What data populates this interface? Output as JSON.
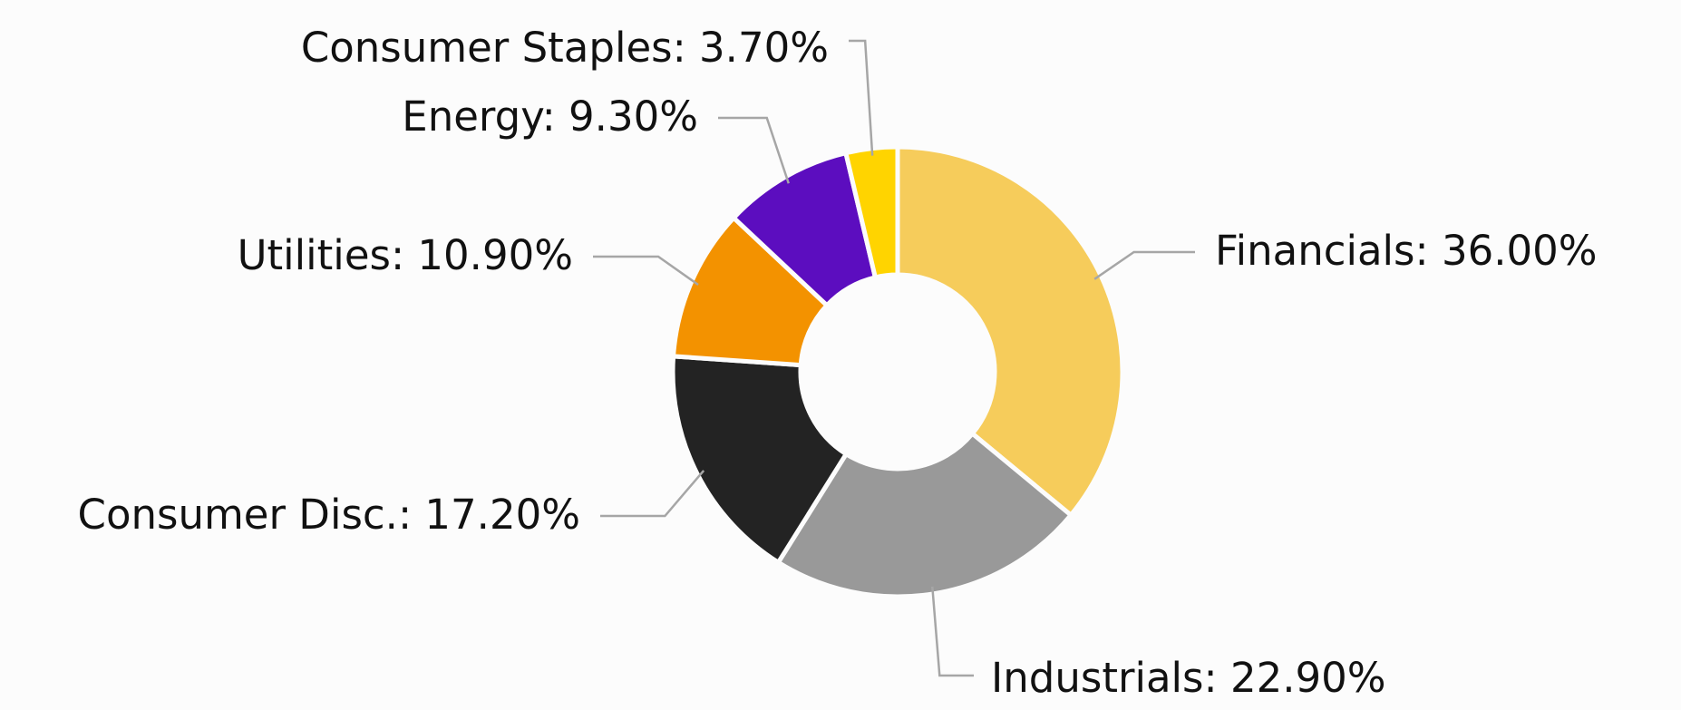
{
  "chart_data": {
    "type": "pie",
    "variant": "donut",
    "title": "",
    "legend": "none",
    "label_format": "{name}: {value}%",
    "slices": [
      {
        "name": "Financials",
        "value": 36.0,
        "value_text": "36.00%",
        "color": "#f6cc5b"
      },
      {
        "name": "Industrials",
        "value": 22.9,
        "value_text": "22.90%",
        "color": "#999999"
      },
      {
        "name": "Consumer Disc.",
        "value": 17.2,
        "value_text": "17.20%",
        "color": "#232323"
      },
      {
        "name": "Utilities",
        "value": 10.9,
        "value_text": "10.90%",
        "color": "#f39200"
      },
      {
        "name": "Energy",
        "value": 9.3,
        "value_text": "9.30%",
        "color": "#5c0dbf"
      },
      {
        "name": "Consumer Staples",
        "value": 3.7,
        "value_text": "3.70%",
        "color": "#ffd400"
      }
    ]
  }
}
